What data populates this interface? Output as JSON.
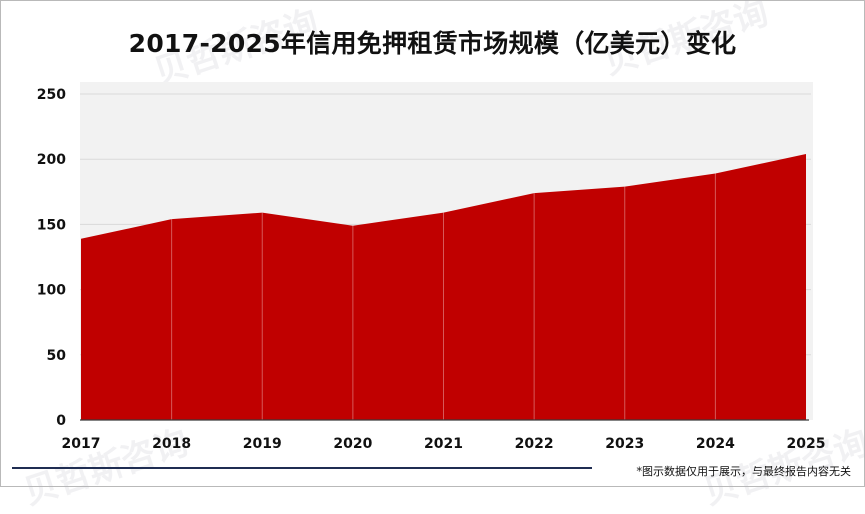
{
  "watermark": "贝哲斯咨询",
  "footer_note": "*图示数据仅用于展示，与最终报告内容无关",
  "colors": {
    "area": "#c00000",
    "plot_bg": "#f2f2f2",
    "footer_line": "#1f2d52"
  },
  "chart_data": {
    "type": "area",
    "title": "2017-2025年信用免押租赁市场规模（亿美元）变化",
    "xlabel": "",
    "ylabel": "",
    "categories": [
      "2017",
      "2018",
      "2019",
      "2020",
      "2021",
      "2022",
      "2023",
      "2024",
      "2025"
    ],
    "series": [
      {
        "values": [
          139,
          154,
          159,
          149,
          159,
          174,
          179,
          189,
          204
        ]
      }
    ],
    "ylim": [
      0,
      250
    ],
    "yticks": [
      0,
      50,
      100,
      150,
      200,
      250
    ],
    "grid": true,
    "legend": "none"
  }
}
